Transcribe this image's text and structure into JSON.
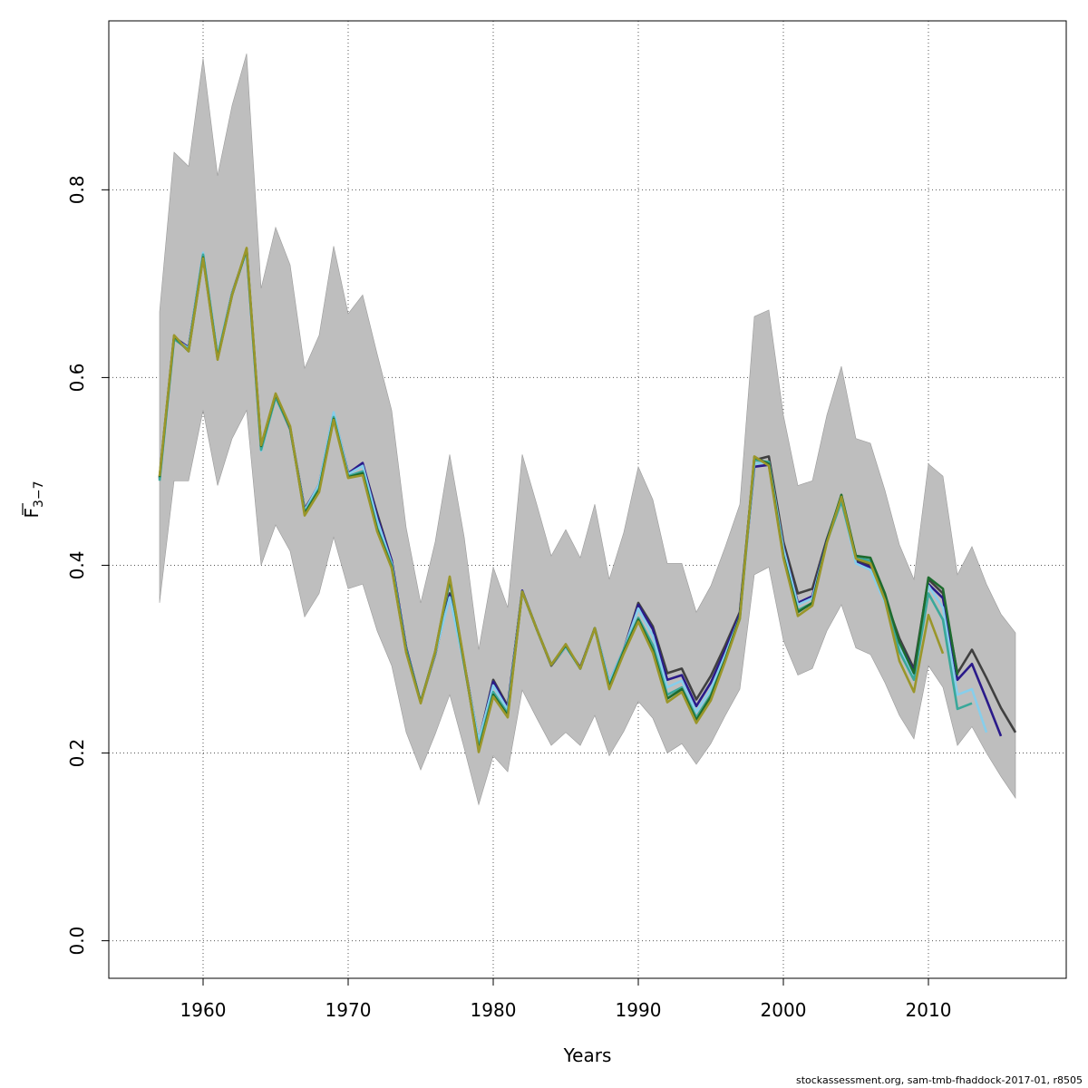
{
  "chart_data": {
    "type": "line",
    "xlabel": "Years",
    "ylabel_main": "F",
    "ylabel_sub": "3−7",
    "xlim": [
      1953.5,
      2019.5
    ],
    "ylim": [
      -0.04,
      0.98
    ],
    "x_ticks": [
      1960,
      1970,
      1980,
      1990,
      2000,
      2010
    ],
    "x_tick_labels": [
      "1960",
      "1970",
      "1980",
      "1990",
      "2000",
      "2010"
    ],
    "y_ticks": [
      0.0,
      0.2,
      0.4,
      0.6,
      0.8
    ],
    "y_tick_labels": [
      "0.0",
      "0.2",
      "0.4",
      "0.6",
      "0.8"
    ],
    "grid": true,
    "band": {
      "color": "#bebebe",
      "x": [
        1957,
        1958,
        1959,
        1960,
        1961,
        1962,
        1963,
        1964,
        1965,
        1966,
        1967,
        1968,
        1969,
        1970,
        1971,
        1972,
        1973,
        1974,
        1975,
        1976,
        1977,
        1978,
        1979,
        1980,
        1981,
        1982,
        1983,
        1984,
        1985,
        1986,
        1987,
        1988,
        1989,
        1990,
        1991,
        1992,
        1993,
        1994,
        1995,
        1996,
        1997,
        1998,
        1999,
        2000,
        2001,
        2002,
        2003,
        2004,
        2005,
        2006,
        2007,
        2008,
        2009,
        2010,
        2011,
        2012,
        2013,
        2014,
        2015,
        2016
      ],
      "upper": [
        0.67,
        0.84,
        0.825,
        0.94,
        0.815,
        0.89,
        0.945,
        0.695,
        0.76,
        0.72,
        0.61,
        0.645,
        0.74,
        0.668,
        0.688,
        0.625,
        0.565,
        0.44,
        0.36,
        0.425,
        0.518,
        0.43,
        0.31,
        0.398,
        0.355,
        0.518,
        0.465,
        0.41,
        0.438,
        0.408,
        0.465,
        0.385,
        0.435,
        0.505,
        0.47,
        0.402,
        0.402,
        0.35,
        0.378,
        0.42,
        0.465,
        0.665,
        0.672,
        0.56,
        0.485,
        0.49,
        0.56,
        0.612,
        0.535,
        0.53,
        0.48,
        0.422,
        0.385,
        0.508,
        0.495,
        0.39,
        0.42,
        0.38,
        0.348,
        0.328
      ],
      "lower": [
        0.36,
        0.49,
        0.49,
        0.565,
        0.485,
        0.535,
        0.565,
        0.4,
        0.443,
        0.415,
        0.345,
        0.37,
        0.43,
        0.375,
        0.38,
        0.33,
        0.293,
        0.222,
        0.182,
        0.22,
        0.262,
        0.205,
        0.145,
        0.197,
        0.18,
        0.267,
        0.237,
        0.208,
        0.222,
        0.208,
        0.24,
        0.197,
        0.223,
        0.255,
        0.237,
        0.2,
        0.21,
        0.188,
        0.21,
        0.24,
        0.268,
        0.39,
        0.398,
        0.32,
        0.283,
        0.29,
        0.33,
        0.358,
        0.312,
        0.305,
        0.275,
        0.24,
        0.215,
        0.293,
        0.27,
        0.208,
        0.228,
        0.2,
        0.175,
        0.152
      ]
    },
    "series": [
      {
        "color": "#404040",
        "x": [
          1957,
          1958,
          1959,
          1960,
          1961,
          1962,
          1963,
          1964,
          1965,
          1966,
          1967,
          1968,
          1969,
          1970,
          1971,
          1972,
          1973,
          1974,
          1975,
          1976,
          1977,
          1978,
          1979,
          1980,
          1981,
          1982,
          1983,
          1984,
          1985,
          1986,
          1987,
          1988,
          1989,
          1990,
          1991,
          1992,
          1993,
          1994,
          1995,
          1996,
          1997,
          1998,
          1999,
          2000,
          2001,
          2002,
          2003,
          2004,
          2005,
          2006,
          2007,
          2008,
          2009,
          2010,
          2011,
          2012,
          2013,
          2014,
          2015,
          2016
        ],
        "values": [
          0.493,
          0.643,
          0.632,
          0.73,
          0.622,
          0.69,
          0.735,
          0.525,
          0.58,
          0.545,
          0.46,
          0.485,
          0.56,
          0.498,
          0.508,
          0.455,
          0.405,
          0.312,
          0.254,
          0.305,
          0.37,
          0.295,
          0.212,
          0.278,
          0.25,
          0.372,
          0.332,
          0.293,
          0.313,
          0.291,
          0.333,
          0.275,
          0.31,
          0.36,
          0.335,
          0.285,
          0.29,
          0.257,
          0.282,
          0.315,
          0.35,
          0.512,
          0.516,
          0.425,
          0.37,
          0.375,
          0.428,
          0.473,
          0.405,
          0.4,
          0.365,
          0.322,
          0.29,
          0.385,
          0.37,
          0.285,
          0.31,
          0.28,
          0.248,
          0.222
        ]
      },
      {
        "color": "#2a1a8a",
        "x": [
          1957,
          1958,
          1959,
          1960,
          1961,
          1962,
          1963,
          1964,
          1965,
          1966,
          1967,
          1968,
          1969,
          1970,
          1971,
          1972,
          1973,
          1974,
          1975,
          1976,
          1977,
          1978,
          1979,
          1980,
          1981,
          1982,
          1983,
          1984,
          1985,
          1986,
          1987,
          1988,
          1989,
          1990,
          1991,
          1992,
          1993,
          1994,
          1995,
          1996,
          1997,
          1998,
          1999,
          2000,
          2001,
          2002,
          2003,
          2004,
          2005,
          2006,
          2007,
          2008,
          2009,
          2010,
          2011,
          2012,
          2013,
          2014,
          2015
        ],
        "values": [
          0.492,
          0.643,
          0.632,
          0.732,
          0.623,
          0.69,
          0.735,
          0.524,
          0.58,
          0.546,
          0.459,
          0.486,
          0.562,
          0.498,
          0.509,
          0.452,
          0.405,
          0.312,
          0.254,
          0.306,
          0.368,
          0.295,
          0.212,
          0.276,
          0.248,
          0.373,
          0.332,
          0.294,
          0.314,
          0.291,
          0.333,
          0.276,
          0.31,
          0.358,
          0.332,
          0.278,
          0.283,
          0.25,
          0.275,
          0.31,
          0.348,
          0.505,
          0.507,
          0.42,
          0.36,
          0.367,
          0.427,
          0.472,
          0.403,
          0.398,
          0.363,
          0.318,
          0.287,
          0.38,
          0.365,
          0.278,
          0.295,
          0.257,
          0.218
        ]
      },
      {
        "color": "#87ceeb",
        "x": [
          1957,
          1958,
          1959,
          1960,
          1961,
          1962,
          1963,
          1964,
          1965,
          1966,
          1967,
          1968,
          1969,
          1970,
          1971,
          1972,
          1973,
          1974,
          1975,
          1976,
          1977,
          1978,
          1979,
          1980,
          1981,
          1982,
          1983,
          1984,
          1985,
          1986,
          1987,
          1988,
          1989,
          1990,
          1991,
          1992,
          1993,
          1994,
          1995,
          1996,
          1997,
          1998,
          1999,
          2000,
          2001,
          2002,
          2003,
          2004,
          2005,
          2006,
          2007,
          2008,
          2009,
          2010,
          2011,
          2012,
          2013,
          2014
        ],
        "values": [
          0.491,
          0.642,
          0.631,
          0.733,
          0.624,
          0.69,
          0.734,
          0.522,
          0.579,
          0.546,
          0.458,
          0.486,
          0.563,
          0.497,
          0.506,
          0.448,
          0.402,
          0.31,
          0.254,
          0.306,
          0.366,
          0.294,
          0.213,
          0.272,
          0.246,
          0.372,
          0.332,
          0.294,
          0.313,
          0.29,
          0.333,
          0.276,
          0.31,
          0.354,
          0.325,
          0.27,
          0.277,
          0.244,
          0.268,
          0.305,
          0.345,
          0.508,
          0.51,
          0.418,
          0.358,
          0.365,
          0.425,
          0.47,
          0.402,
          0.395,
          0.36,
          0.312,
          0.283,
          0.378,
          0.355,
          0.262,
          0.268,
          0.222
        ]
      },
      {
        "color": "#3aa89a",
        "x": [
          1957,
          1958,
          1959,
          1960,
          1961,
          1962,
          1963,
          1964,
          1965,
          1966,
          1967,
          1968,
          1969,
          1970,
          1971,
          1972,
          1973,
          1974,
          1975,
          1976,
          1977,
          1978,
          1979,
          1980,
          1981,
          1982,
          1983,
          1984,
          1985,
          1986,
          1987,
          1988,
          1989,
          1990,
          1991,
          1992,
          1993,
          1994,
          1995,
          1996,
          1997,
          1998,
          1999,
          2000,
          2001,
          2002,
          2003,
          2004,
          2005,
          2006,
          2007,
          2008,
          2009,
          2010,
          2011,
          2012,
          2013
        ],
        "values": [
          0.49,
          0.641,
          0.63,
          0.731,
          0.622,
          0.689,
          0.736,
          0.523,
          0.579,
          0.546,
          0.456,
          0.482,
          0.558,
          0.495,
          0.5,
          0.44,
          0.4,
          0.31,
          0.254,
          0.307,
          0.384,
          0.294,
          0.206,
          0.265,
          0.242,
          0.372,
          0.332,
          0.294,
          0.314,
          0.29,
          0.333,
          0.272,
          0.31,
          0.344,
          0.315,
          0.262,
          0.27,
          0.238,
          0.262,
          0.3,
          0.343,
          0.512,
          0.51,
          0.41,
          0.352,
          0.36,
          0.425,
          0.468,
          0.408,
          0.405,
          0.365,
          0.308,
          0.278,
          0.37,
          0.342,
          0.247,
          0.253
        ]
      },
      {
        "color": "#1e6b2e",
        "x": [
          1957,
          1958,
          1959,
          1960,
          1961,
          1962,
          1963,
          1964,
          1965,
          1966,
          1967,
          1968,
          1969,
          1970,
          1971,
          1972,
          1973,
          1974,
          1975,
          1976,
          1977,
          1978,
          1979,
          1980,
          1981,
          1982,
          1983,
          1984,
          1985,
          1986,
          1987,
          1988,
          1989,
          1990,
          1991,
          1992,
          1993,
          1994,
          1995,
          1996,
          1997,
          1998,
          1999,
          2000,
          2001,
          2002,
          2003,
          2004,
          2005,
          2006,
          2007,
          2008,
          2009,
          2010,
          2011,
          2012
        ],
        "values": [
          0.494,
          0.644,
          0.628,
          0.728,
          0.62,
          0.688,
          0.737,
          0.527,
          0.582,
          0.547,
          0.455,
          0.48,
          0.556,
          0.494,
          0.498,
          0.438,
          0.398,
          0.308,
          0.254,
          0.308,
          0.386,
          0.296,
          0.203,
          0.262,
          0.24,
          0.372,
          0.332,
          0.294,
          0.315,
          0.29,
          0.333,
          0.27,
          0.308,
          0.342,
          0.31,
          0.258,
          0.268,
          0.235,
          0.26,
          0.3,
          0.345,
          0.515,
          0.508,
          0.41,
          0.35,
          0.36,
          0.426,
          0.475,
          0.41,
          0.408,
          0.37,
          0.318,
          0.285,
          0.387,
          0.375,
          0.283
        ]
      },
      {
        "color": "#9a962a",
        "x": [
          1957,
          1958,
          1959,
          1960,
          1961,
          1962,
          1963,
          1964,
          1965,
          1966,
          1967,
          1968,
          1969,
          1970,
          1971,
          1972,
          1973,
          1974,
          1975,
          1976,
          1977,
          1978,
          1979,
          1980,
          1981,
          1982,
          1983,
          1984,
          1985,
          1986,
          1987,
          1988,
          1989,
          1990,
          1991,
          1992,
          1993,
          1994,
          1995,
          1996,
          1997,
          1998,
          1999,
          2000,
          2001,
          2002,
          2003,
          2004,
          2005,
          2006,
          2007,
          2008,
          2009,
          2010,
          2011
        ],
        "values": [
          0.495,
          0.645,
          0.628,
          0.727,
          0.619,
          0.688,
          0.738,
          0.528,
          0.583,
          0.548,
          0.453,
          0.478,
          0.555,
          0.493,
          0.496,
          0.436,
          0.397,
          0.307,
          0.253,
          0.308,
          0.388,
          0.297,
          0.201,
          0.26,
          0.238,
          0.372,
          0.332,
          0.294,
          0.316,
          0.29,
          0.333,
          0.268,
          0.306,
          0.34,
          0.307,
          0.254,
          0.265,
          0.232,
          0.256,
          0.298,
          0.343,
          0.516,
          0.506,
          0.408,
          0.346,
          0.357,
          0.424,
          0.473,
          0.407,
          0.402,
          0.363,
          0.298,
          0.265,
          0.347,
          0.306
        ]
      }
    ]
  },
  "footer": {
    "text": "stockassessment.org, sam-tmb-fhaddock-2017-01, r8505"
  }
}
